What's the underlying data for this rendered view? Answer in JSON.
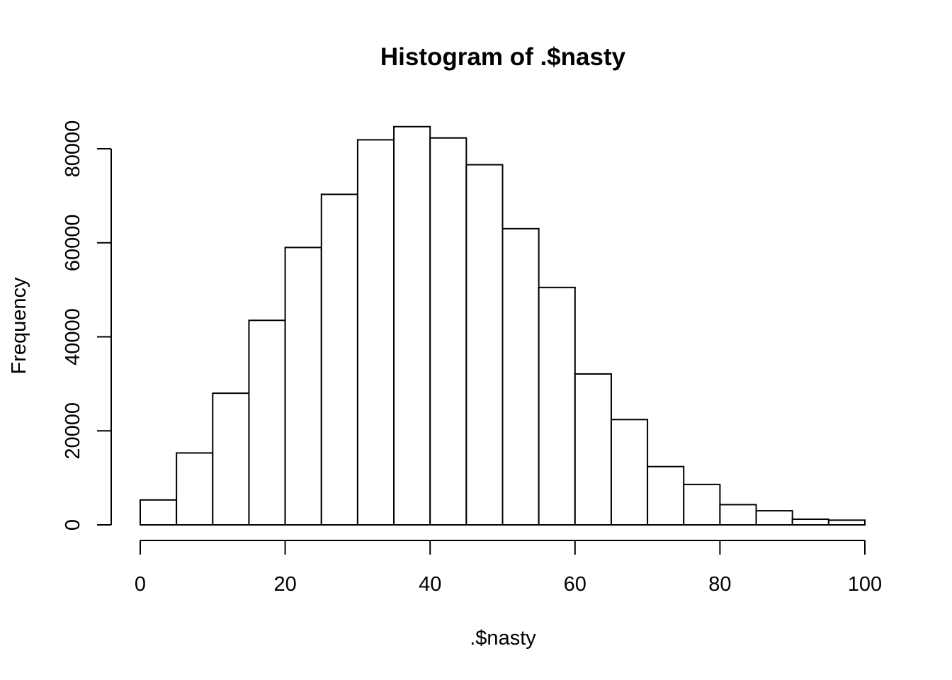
{
  "chart_data": {
    "type": "bar",
    "title": "Histogram of .$nasty",
    "xlabel": ".$nasty",
    "ylabel": "Frequency",
    "bin_width": 5,
    "bins": [
      {
        "start": 0,
        "end": 5,
        "value": 5300
      },
      {
        "start": 5,
        "end": 10,
        "value": 15300
      },
      {
        "start": 10,
        "end": 15,
        "value": 28000
      },
      {
        "start": 15,
        "end": 20,
        "value": 43500
      },
      {
        "start": 20,
        "end": 25,
        "value": 59000
      },
      {
        "start": 25,
        "end": 30,
        "value": 70300
      },
      {
        "start": 30,
        "end": 35,
        "value": 81900
      },
      {
        "start": 35,
        "end": 40,
        "value": 84700
      },
      {
        "start": 40,
        "end": 45,
        "value": 82300
      },
      {
        "start": 45,
        "end": 50,
        "value": 76600
      },
      {
        "start": 50,
        "end": 55,
        "value": 63000
      },
      {
        "start": 55,
        "end": 60,
        "value": 50500
      },
      {
        "start": 60,
        "end": 65,
        "value": 32100
      },
      {
        "start": 65,
        "end": 70,
        "value": 22400
      },
      {
        "start": 70,
        "end": 75,
        "value": 12400
      },
      {
        "start": 75,
        "end": 80,
        "value": 8600
      },
      {
        "start": 80,
        "end": 85,
        "value": 4300
      },
      {
        "start": 85,
        "end": 90,
        "value": 3000
      },
      {
        "start": 90,
        "end": 95,
        "value": 1200
      },
      {
        "start": 95,
        "end": 100,
        "value": 1000
      }
    ],
    "xlim": [
      0,
      100
    ],
    "ylim": [
      0,
      85000
    ],
    "x_ticks": [
      0,
      20,
      40,
      60,
      80,
      100
    ],
    "x_tick_labels": [
      "0",
      "20",
      "40",
      "60",
      "80",
      "100"
    ],
    "y_ticks": [
      0,
      20000,
      40000,
      60000,
      80000
    ],
    "y_tick_labels": [
      "0",
      "20000",
      "40000",
      "60000",
      "80000"
    ],
    "grid": false,
    "colors": {
      "bar_fill": "#ffffff",
      "bar_stroke": "#000000"
    }
  }
}
